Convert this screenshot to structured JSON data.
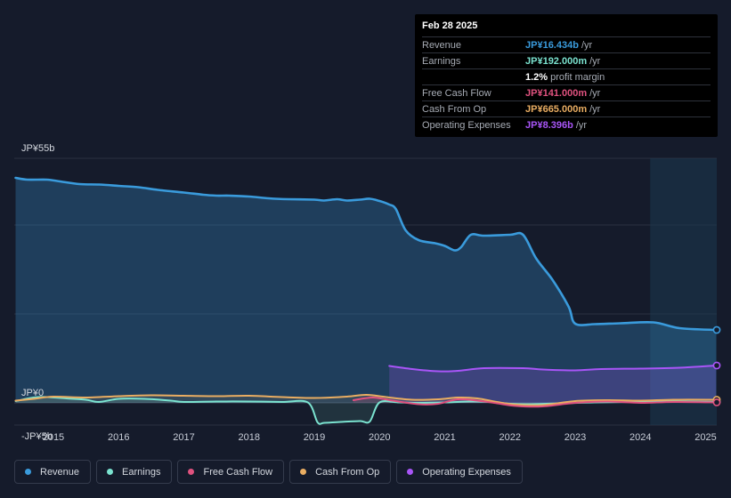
{
  "tooltip": {
    "date": "Feb 28 2025",
    "rows": [
      {
        "label": "Revenue",
        "value": "JP¥16.434b",
        "unit": "/yr",
        "color": "#3a9bdc"
      },
      {
        "label": "Earnings",
        "value": "JP¥192.000m",
        "unit": "/yr",
        "color": "#7be3d0"
      },
      {
        "label": "",
        "value": "1.2%",
        "unit": "profit margin",
        "color": "#ffffff"
      },
      {
        "label": "Free Cash Flow",
        "value": "JP¥141.000m",
        "unit": "/yr",
        "color": "#e0527f"
      },
      {
        "label": "Cash From Op",
        "value": "JP¥665.000m",
        "unit": "/yr",
        "color": "#e9ad62"
      },
      {
        "label": "Operating Expenses",
        "value": "JP¥8.396b",
        "unit": "/yr",
        "color": "#a855f7"
      }
    ]
  },
  "legend": [
    {
      "label": "Revenue",
      "color": "#3a9bdc"
    },
    {
      "label": "Earnings",
      "color": "#7be3d0"
    },
    {
      "label": "Free Cash Flow",
      "color": "#e0527f"
    },
    {
      "label": "Cash From Op",
      "color": "#e9ad62"
    },
    {
      "label": "Operating Expenses",
      "color": "#a855f7"
    }
  ],
  "chart_data": {
    "type": "area",
    "y_unit": "JP¥ billions",
    "ylim": [
      -5,
      55
    ],
    "y_ticks": [
      {
        "value": 55,
        "label": "JP¥55b"
      },
      {
        "value": 0,
        "label": "JP¥0"
      },
      {
        "value": -5,
        "label": "-JP¥5b"
      }
    ],
    "x_ticks": [
      2015,
      2016,
      2017,
      2018,
      2019,
      2020,
      2021,
      2022,
      2023,
      2024,
      2025
    ],
    "xlim": [
      2014.4,
      2025.17
    ],
    "forecast_start": 2024.15,
    "series": [
      {
        "name": "Revenue",
        "color": "#3a9bdc",
        "points": [
          [
            2014.42,
            50.6
          ],
          [
            2014.6,
            50.2
          ],
          [
            2014.9,
            50.2
          ],
          [
            2015.1,
            49.8
          ],
          [
            2015.4,
            49.2
          ],
          [
            2015.7,
            49.1
          ],
          [
            2016.0,
            48.8
          ],
          [
            2016.3,
            48.5
          ],
          [
            2016.6,
            47.9
          ],
          [
            2017.0,
            47.3
          ],
          [
            2017.3,
            46.8
          ],
          [
            2017.5,
            46.6
          ],
          [
            2017.7,
            46.6
          ],
          [
            2018.0,
            46.4
          ],
          [
            2018.3,
            46.0
          ],
          [
            2018.6,
            45.8
          ],
          [
            2019.0,
            45.7
          ],
          [
            2019.15,
            45.5
          ],
          [
            2019.35,
            45.8
          ],
          [
            2019.5,
            45.5
          ],
          [
            2019.7,
            45.7
          ],
          [
            2019.85,
            45.9
          ],
          [
            2020.0,
            45.4
          ],
          [
            2020.15,
            44.6
          ],
          [
            2020.25,
            43.6
          ],
          [
            2020.4,
            38.8
          ],
          [
            2020.6,
            36.6
          ],
          [
            2020.85,
            35.9
          ],
          [
            2021.0,
            35.3
          ],
          [
            2021.15,
            34.3
          ],
          [
            2021.25,
            35.0
          ],
          [
            2021.4,
            37.8
          ],
          [
            2021.6,
            37.6
          ],
          [
            2022.0,
            37.8
          ],
          [
            2022.2,
            37.8
          ],
          [
            2022.4,
            32.5
          ],
          [
            2022.65,
            27.7
          ],
          [
            2022.9,
            21.6
          ],
          [
            2023.0,
            17.8
          ],
          [
            2023.3,
            17.7
          ],
          [
            2023.7,
            17.9
          ],
          [
            2024.2,
            18.1
          ],
          [
            2024.6,
            16.8
          ],
          [
            2025.16,
            16.4
          ]
        ]
      },
      {
        "name": "Operating Expenses",
        "color": "#a855f7",
        "points": [
          [
            2020.15,
            8.3
          ],
          [
            2020.5,
            7.6
          ],
          [
            2020.9,
            7.1
          ],
          [
            2021.2,
            7.2
          ],
          [
            2021.6,
            7.8
          ],
          [
            2022.2,
            7.8
          ],
          [
            2022.5,
            7.5
          ],
          [
            2023.0,
            7.3
          ],
          [
            2023.4,
            7.6
          ],
          [
            2024.0,
            7.7
          ],
          [
            2024.6,
            7.9
          ],
          [
            2025.16,
            8.4
          ]
        ]
      },
      {
        "name": "Earnings",
        "color": "#7be3d0",
        "points": [
          [
            2014.42,
            0.4
          ],
          [
            2014.7,
            1.2
          ],
          [
            2014.9,
            1.3
          ],
          [
            2015.2,
            1.0
          ],
          [
            2015.5,
            0.7
          ],
          [
            2015.7,
            0.2
          ],
          [
            2016.0,
            0.9
          ],
          [
            2016.4,
            0.9
          ],
          [
            2016.8,
            0.5
          ],
          [
            2017.0,
            0.2
          ],
          [
            2017.5,
            0.3
          ],
          [
            2018.0,
            0.3
          ],
          [
            2018.5,
            0.2
          ],
          [
            2018.9,
            0.1
          ],
          [
            2019.05,
            -4.4
          ],
          [
            2019.15,
            -4.5
          ],
          [
            2019.4,
            -4.3
          ],
          [
            2019.7,
            -4.1
          ],
          [
            2019.85,
            -4.2
          ],
          [
            2020.0,
            0.1
          ],
          [
            2020.3,
            0.1
          ],
          [
            2020.6,
            0.0
          ],
          [
            2021.0,
            0.1
          ],
          [
            2021.4,
            0.3
          ],
          [
            2021.7,
            0.2
          ],
          [
            2022.0,
            -0.2
          ],
          [
            2022.3,
            -0.3
          ],
          [
            2022.8,
            -0.1
          ],
          [
            2023.3,
            0.1
          ],
          [
            2023.8,
            0.2
          ],
          [
            2024.3,
            0.3
          ],
          [
            2025.16,
            0.2
          ]
        ]
      },
      {
        "name": "Cash From Op",
        "color": "#e9ad62",
        "points": [
          [
            2014.42,
            0.5
          ],
          [
            2014.7,
            0.9
          ],
          [
            2015.0,
            1.4
          ],
          [
            2015.5,
            1.2
          ],
          [
            2016.0,
            1.5
          ],
          [
            2016.5,
            1.7
          ],
          [
            2017.0,
            1.6
          ],
          [
            2017.5,
            1.5
          ],
          [
            2018.0,
            1.6
          ],
          [
            2018.5,
            1.3
          ],
          [
            2019.0,
            1.1
          ],
          [
            2019.5,
            1.4
          ],
          [
            2019.8,
            1.8
          ],
          [
            2020.1,
            1.3
          ],
          [
            2020.5,
            0.7
          ],
          [
            2020.9,
            0.8
          ],
          [
            2021.2,
            1.2
          ],
          [
            2021.5,
            1.0
          ],
          [
            2021.8,
            0.2
          ],
          [
            2022.1,
            -0.4
          ],
          [
            2022.5,
            -0.5
          ],
          [
            2023.0,
            0.4
          ],
          [
            2023.5,
            0.6
          ],
          [
            2024.0,
            0.5
          ],
          [
            2024.5,
            0.7
          ],
          [
            2025.16,
            0.7
          ]
        ]
      },
      {
        "name": "Free Cash Flow",
        "color": "#e0527f",
        "points": [
          [
            2019.6,
            0.6
          ],
          [
            2019.9,
            1.2
          ],
          [
            2020.2,
            0.5
          ],
          [
            2020.6,
            -0.3
          ],
          [
            2020.9,
            -0.2
          ],
          [
            2021.2,
            0.8
          ],
          [
            2021.5,
            0.5
          ],
          [
            2021.8,
            -0.1
          ],
          [
            2022.1,
            -0.7
          ],
          [
            2022.5,
            -0.8
          ],
          [
            2023.0,
            0.0
          ],
          [
            2023.5,
            0.3
          ],
          [
            2024.0,
            0.0
          ],
          [
            2024.5,
            0.2
          ],
          [
            2025.16,
            0.1
          ]
        ]
      }
    ]
  }
}
